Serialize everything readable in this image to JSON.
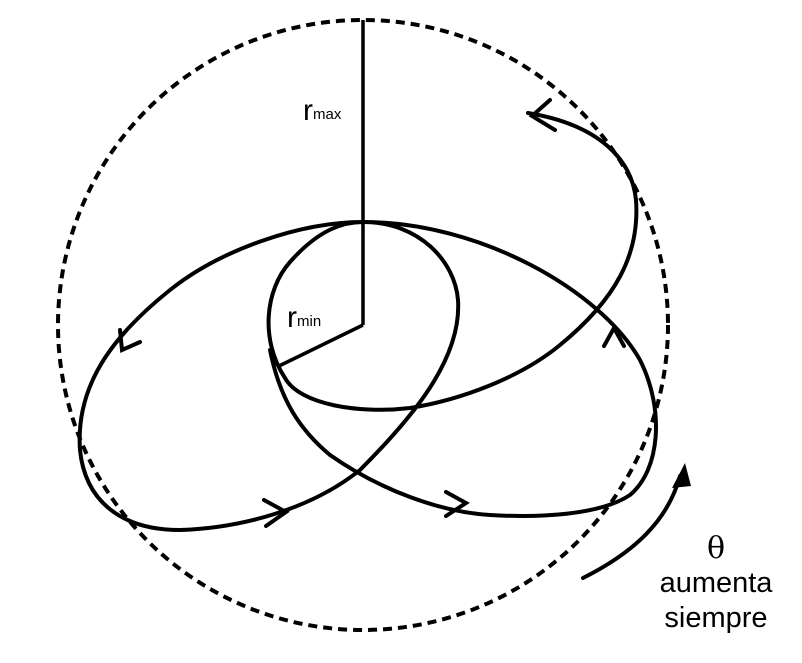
{
  "labels": {
    "r_max_main": "r",
    "r_max_sub": "max",
    "r_min_main": "r",
    "r_min_sub": "min",
    "theta": "θ",
    "note_line1": "aumenta",
    "note_line2": "siempre"
  }
}
